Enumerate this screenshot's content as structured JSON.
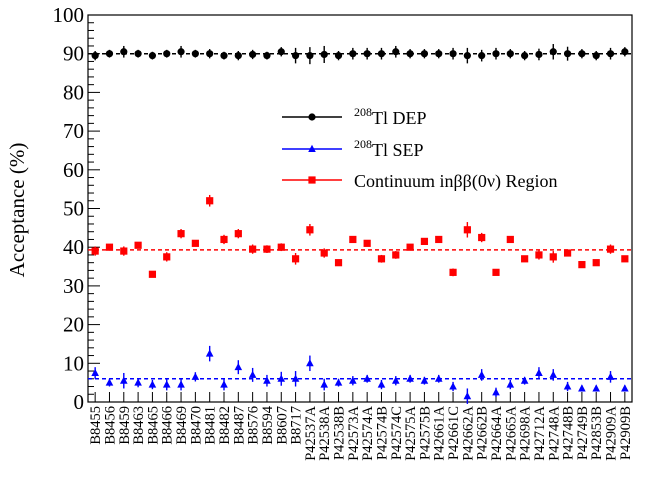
{
  "chart_data": {
    "type": "scatter",
    "title": "",
    "ylabel": "Acceptance (%)",
    "xlabel": "",
    "ylim": [
      0,
      100
    ],
    "yticks": [
      0,
      10,
      20,
      30,
      40,
      50,
      60,
      70,
      80,
      90,
      100
    ],
    "grid": false,
    "legend_position": "upper-middle",
    "categories": [
      "B8455",
      "B8456",
      "B8459",
      "B8463",
      "B8465",
      "B8466",
      "B8469",
      "B8470",
      "B8481",
      "B8482",
      "B8487",
      "B8576",
      "B8594",
      "B8607",
      "B8717",
      "P42537A",
      "P42538A",
      "P42538B",
      "P42573A",
      "P42574A",
      "P42574B",
      "P42574C",
      "P42575A",
      "P42575B",
      "P42661A",
      "P42661C",
      "P42662A",
      "P42662B",
      "P42664A",
      "P42665A",
      "P42698A",
      "P42712A",
      "P42748A",
      "P42748B",
      "P42749B",
      "P42853B",
      "P42909A",
      "P42909B"
    ],
    "series": [
      {
        "name": "Tl DEP",
        "legend_sup": "208",
        "legend_text": "Tl DEP",
        "color": "#000000",
        "marker": "circle",
        "mean": 90.0,
        "values": [
          89.5,
          90.0,
          90.5,
          90.0,
          89.5,
          90.0,
          90.5,
          90.0,
          90.0,
          89.5,
          89.5,
          89.8,
          89.5,
          90.5,
          89.5,
          89.5,
          89.8,
          89.5,
          90.0,
          90.0,
          90.0,
          90.5,
          90.0,
          90.0,
          90.0,
          90.0,
          89.5,
          89.5,
          90.0,
          90.0,
          89.5,
          89.8,
          90.5,
          90.0,
          90.0,
          89.5,
          90.0,
          90.5
        ],
        "errors": [
          1.2,
          1.0,
          1.5,
          1.0,
          1.0,
          1.0,
          1.5,
          1.0,
          1.2,
          1.0,
          1.2,
          1.2,
          1.0,
          1.2,
          2.0,
          2.2,
          2.2,
          1.2,
          1.5,
          1.5,
          1.5,
          1.5,
          1.2,
          1.2,
          1.2,
          1.5,
          2.0,
          1.5,
          1.5,
          1.2,
          1.2,
          1.5,
          2.0,
          1.8,
          1.2,
          1.2,
          1.5,
          1.2
        ]
      },
      {
        "name": "Tl SEP",
        "legend_sup": "208",
        "legend_text": "Tl SEP",
        "color": "#0000ff",
        "marker": "triangle",
        "mean": 6.0,
        "values": [
          7.5,
          5.0,
          5.5,
          5.0,
          4.5,
          4.5,
          4.5,
          6.5,
          12.5,
          4.5,
          9.0,
          7.0,
          5.5,
          6.0,
          6.0,
          10.0,
          4.5,
          5.0,
          5.5,
          6.0,
          4.5,
          5.5,
          6.0,
          5.5,
          6.0,
          4.0,
          1.5,
          7.0,
          2.5,
          4.5,
          5.5,
          7.5,
          7.0,
          4.0,
          3.5,
          3.5,
          6.5,
          3.5
        ],
        "errors": [
          1.5,
          1.0,
          2.0,
          1.2,
          1.2,
          1.5,
          1.5,
          1.2,
          2.0,
          1.5,
          1.8,
          1.8,
          1.5,
          1.8,
          2.0,
          2.0,
          1.5,
          1.0,
          1.2,
          1.0,
          1.2,
          1.2,
          1.0,
          1.0,
          1.0,
          1.2,
          2.0,
          1.5,
          1.2,
          1.2,
          1.0,
          1.5,
          1.5,
          1.2,
          0.8,
          0.8,
          1.5,
          0.8
        ]
      },
      {
        "name": "Continuum inββ(0ν) Region",
        "legend_text": "Continuum inββ(0ν) Region",
        "color": "#ff0000",
        "marker": "square",
        "mean": 39.3,
        "values": [
          39.0,
          40.0,
          39.0,
          40.5,
          33.0,
          37.5,
          43.5,
          41.0,
          52.0,
          42.0,
          43.5,
          39.5,
          39.5,
          40.0,
          37.0,
          44.5,
          38.5,
          36.0,
          42.0,
          41.0,
          37.0,
          38.0,
          40.0,
          41.5,
          42.0,
          33.5,
          44.5,
          42.5,
          33.5,
          42.0,
          37.0,
          38.0,
          37.5,
          38.5,
          35.5,
          36.0,
          39.5,
          37.0
        ],
        "errors": [
          1.2,
          0.8,
          1.2,
          0.8,
          0.8,
          1.2,
          1.2,
          0.8,
          1.5,
          1.2,
          1.2,
          1.2,
          1.0,
          1.0,
          1.5,
          1.5,
          1.2,
          0.8,
          0.8,
          0.8,
          1.0,
          1.0,
          0.8,
          0.8,
          0.8,
          1.0,
          2.0,
          1.2,
          0.8,
          0.8,
          0.8,
          1.2,
          1.5,
          0.8,
          0.8,
          0.8,
          1.2,
          0.8
        ]
      }
    ]
  }
}
